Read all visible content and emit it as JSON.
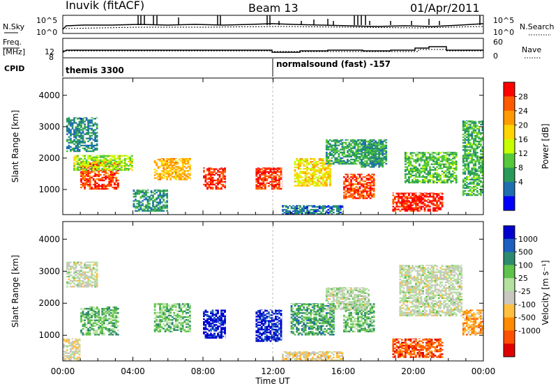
{
  "header": {
    "station": "Inuvik (fitACF)",
    "beam": "Beam 13",
    "date": "01/Apr/2011"
  },
  "noise_panel": {
    "left_label": "N.Sky",
    "right_label": "N.Search",
    "left_ticks": [
      "10^5",
      "10^0"
    ],
    "right_ticks": [
      "10^5",
      "10^0"
    ]
  },
  "freq_panel": {
    "left_label": "Freq.",
    "left_unit": "[MHz]",
    "left_ticks": [
      "12",
      "8"
    ],
    "right_label": "Nave",
    "right_ticks": [
      "60",
      "0"
    ]
  },
  "cpid": {
    "label": "CPID",
    "programs": [
      {
        "name": "themis 3300",
        "start_hour": 0
      },
      {
        "name": "normalsound (fast) -157",
        "start_hour": 12
      }
    ]
  },
  "power_panel": {
    "ylabel": "Slant Range [km]",
    "yticks": [
      1000,
      2000,
      3000,
      4000
    ],
    "ylim": [
      200,
      4550
    ],
    "colorbar": {
      "label": "Power [dB]",
      "tick_labels": [
        "28",
        "24",
        "20",
        "16",
        "12",
        "8",
        "4"
      ],
      "colors": [
        "#ff0000",
        "#ff5a00",
        "#ff9b00",
        "#ffd400",
        "#c8ff00",
        "#55c83c",
        "#2a9a5a",
        "#1f6fb0",
        "#0000ff"
      ]
    }
  },
  "velocity_panel": {
    "ylabel": "Slant Range [km]",
    "yticks": [
      1000,
      2000,
      3000,
      4000
    ],
    "ylim": [
      200,
      4550
    ],
    "colorbar": {
      "label": "Velocity [m s⁻¹]",
      "tick_labels": [
        "1000",
        "500",
        "100",
        "25",
        "-25",
        "-100",
        "-500",
        "-1000"
      ],
      "colors": [
        "#0000d0",
        "#1c5fc0",
        "#2e8a6e",
        "#5fc24a",
        "#b4e0a0",
        "#c8c8c0",
        "#ffc040",
        "#ff8a00",
        "#ff5000",
        "#e00000"
      ]
    }
  },
  "time_axis": {
    "label": "Time UT",
    "tick_labels": [
      "00:00",
      "04:00",
      "08:00",
      "12:00",
      "16:00",
      "20:00",
      "00:00"
    ]
  },
  "chart_data": {
    "type": "heatmap",
    "title": "Inuvik (fitACF)  Beam 13  01/Apr/2011",
    "xlabel": "Time UT",
    "ylabel": "Slant Range [km]",
    "xlim_hours": [
      0,
      24
    ],
    "ylim_km": [
      200,
      4550
    ],
    "panels": [
      {
        "name": "Power [dB]",
        "clim": [
          0,
          30
        ],
        "regions": [
          {
            "t": [
              1.0,
              3.2
            ],
            "r": [
              1000,
              1900
            ],
            "value": 26
          },
          {
            "t": [
              0.6,
              4.0
            ],
            "r": [
              1600,
              2100
            ],
            "value": 14
          },
          {
            "t": [
              5.2,
              7.3
            ],
            "r": [
              1300,
              2000
            ],
            "value": 20
          },
          {
            "t": [
              8.0,
              9.3
            ],
            "r": [
              1000,
              1700
            ],
            "value": 27
          },
          {
            "t": [
              11.0,
              12.5
            ],
            "r": [
              1000,
              1700
            ],
            "value": 27
          },
          {
            "t": [
              13.2,
              15.3
            ],
            "r": [
              1100,
              2000
            ],
            "value": 18
          },
          {
            "t": [
              16.0,
              17.8
            ],
            "r": [
              700,
              1500
            ],
            "value": 26
          },
          {
            "t": [
              18.8,
              21.7
            ],
            "r": [
              300,
              900
            ],
            "value": 28
          },
          {
            "t": [
              15.0,
              18.5
            ],
            "r": [
              1800,
              2600
            ],
            "value": 9
          },
          {
            "t": [
              17.0,
              18.3
            ],
            "r": [
              1700,
              2600
            ],
            "value": 8
          },
          {
            "t": [
              0.2,
              2.0
            ],
            "r": [
              2200,
              3300
            ],
            "value": 7
          },
          {
            "t": [
              22.8,
              24.0
            ],
            "r": [
              800,
              3200
            ],
            "value": 10
          },
          {
            "t": [
              19.5,
              22.5
            ],
            "r": [
              1200,
              2200
            ],
            "value": 11
          },
          {
            "t": [
              4.0,
              6.0
            ],
            "r": [
              300,
              1000
            ],
            "value": 8
          },
          {
            "t": [
              12.5,
              16.0
            ],
            "r": [
              200,
              500
            ],
            "value": 6
          }
        ]
      },
      {
        "name": "Velocity [m s⁻¹]",
        "clim": [
          -1000,
          1000
        ],
        "regions": [
          {
            "t": [
              1.0,
              3.2
            ],
            "r": [
              1000,
              1900
            ],
            "value": 300
          },
          {
            "t": [
              5.2,
              7.3
            ],
            "r": [
              1100,
              2000
            ],
            "value": 300
          },
          {
            "t": [
              8.0,
              9.3
            ],
            "r": [
              900,
              1800
            ],
            "value": 900
          },
          {
            "t": [
              11.0,
              12.5
            ],
            "r": [
              800,
              1800
            ],
            "value": 900
          },
          {
            "t": [
              13.0,
              15.5
            ],
            "r": [
              1000,
              2000
            ],
            "value": 400
          },
          {
            "t": [
              16.0,
              17.8
            ],
            "r": [
              1100,
              2000
            ],
            "value": 300
          },
          {
            "t": [
              18.8,
              21.7
            ],
            "r": [
              300,
              900
            ],
            "value": -700
          },
          {
            "t": [
              22.8,
              24.0
            ],
            "r": [
              1000,
              1800
            ],
            "value": -400
          },
          {
            "t": [
              19.2,
              22.8
            ],
            "r": [
              1600,
              3200
            ],
            "value": -10
          },
          {
            "t": [
              0.2,
              2.0
            ],
            "r": [
              2500,
              3300
            ],
            "value": -10
          },
          {
            "t": [
              15.0,
              17.5
            ],
            "r": [
              1800,
              2500
            ],
            "value": 30
          },
          {
            "t": [
              12.5,
              16.0
            ],
            "r": [
              200,
              500
            ],
            "value": -200
          },
          {
            "t": [
              0.0,
              1.0
            ],
            "r": [
              200,
              900
            ],
            "value": -150
          }
        ]
      }
    ]
  }
}
